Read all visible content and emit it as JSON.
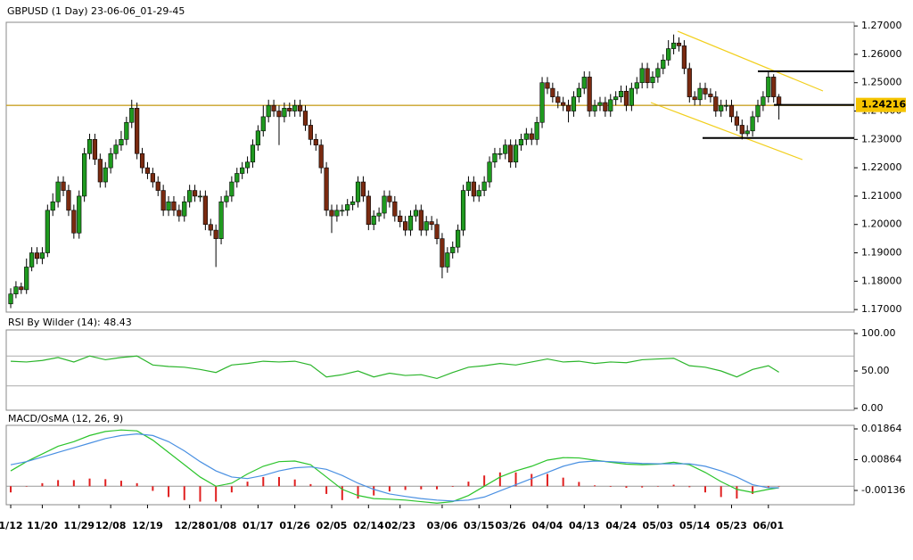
{
  "chart_data": [
    {
      "type": "candlestick",
      "title": "GBPUSD (1 Day) 23-06-06_01-29-45",
      "open": [
        1.172,
        1.1755,
        1.178,
        1.177,
        1.185,
        1.19,
        1.188,
        1.19,
        1.205,
        1.208,
        1.215,
        1.212,
        1.205,
        1.197,
        1.21,
        1.225,
        1.23,
        1.223,
        1.215,
        1.22,
        1.225,
        1.228,
        1.23,
        1.236,
        1.241,
        1.225,
        1.22,
        1.218,
        1.215,
        1.212,
        1.205,
        1.208,
        1.205,
        1.203,
        1.208,
        1.212,
        1.21,
        1.21,
        1.2,
        1.198,
        1.195,
        1.208,
        1.21,
        1.215,
        1.218,
        1.22,
        1.222,
        1.228,
        1.233,
        1.238,
        1.242,
        1.24,
        1.238,
        1.241,
        1.24,
        1.242,
        1.24,
        1.235,
        1.23,
        1.228,
        1.22,
        1.205,
        1.203,
        1.205,
        1.205,
        1.207,
        1.208,
        1.215,
        1.21,
        1.2,
        1.203,
        1.204,
        1.21,
        1.208,
        1.203,
        1.201,
        1.198,
        1.203,
        1.205,
        1.198,
        1.201,
        1.2,
        1.195,
        1.185,
        1.19,
        1.192,
        1.198,
        1.212,
        1.215,
        1.21,
        1.212,
        1.215,
        1.222,
        1.225,
        1.225,
        1.228,
        1.222,
        1.228,
        1.23,
        1.232,
        1.23,
        1.236,
        1.25,
        1.248,
        1.245,
        1.243,
        1.242,
        1.24,
        1.245,
        1.248,
        1.252,
        1.24,
        1.242,
        1.243,
        1.24,
        1.244,
        1.245,
        1.247,
        1.242,
        1.248,
        1.25,
        1.255,
        1.25,
        1.252,
        1.255,
        1.258,
        1.262,
        1.264,
        1.263,
        1.255,
        1.245,
        1.244,
        1.248,
        1.246,
        1.245,
        1.24,
        1.242,
        1.242,
        1.238,
        1.235,
        1.232,
        1.233,
        1.238,
        1.242,
        1.245,
        1.252,
        1.245
      ],
      "high": [
        1.1775,
        1.18,
        1.1795,
        1.188,
        1.192,
        1.192,
        1.192,
        1.207,
        1.211,
        1.217,
        1.217,
        1.214,
        1.207,
        1.212,
        1.227,
        1.232,
        1.232,
        1.225,
        1.222,
        1.227,
        1.23,
        1.233,
        1.238,
        1.244,
        1.243,
        1.227,
        1.222,
        1.22,
        1.217,
        1.214,
        1.21,
        1.21,
        1.207,
        1.21,
        1.214,
        1.214,
        1.212,
        1.212,
        1.202,
        1.2,
        1.21,
        1.212,
        1.217,
        1.22,
        1.222,
        1.224,
        1.23,
        1.235,
        1.242,
        1.244,
        1.244,
        1.242,
        1.243,
        1.243,
        1.244,
        1.244,
        1.242,
        1.237,
        1.232,
        1.23,
        1.222,
        1.207,
        1.207,
        1.207,
        1.209,
        1.21,
        1.217,
        1.217,
        1.212,
        1.205,
        1.206,
        1.212,
        1.212,
        1.21,
        1.205,
        1.203,
        1.205,
        1.207,
        1.207,
        1.203,
        1.203,
        1.202,
        1.197,
        1.192,
        1.194,
        1.2,
        1.214,
        1.217,
        1.217,
        1.214,
        1.217,
        1.224,
        1.227,
        1.227,
        1.23,
        1.23,
        1.23,
        1.232,
        1.234,
        1.234,
        1.238,
        1.252,
        1.252,
        1.25,
        1.247,
        1.245,
        1.244,
        1.247,
        1.25,
        1.254,
        1.254,
        1.244,
        1.245,
        1.245,
        1.246,
        1.247,
        1.249,
        1.249,
        1.25,
        1.252,
        1.257,
        1.257,
        1.254,
        1.257,
        1.26,
        1.265,
        1.267,
        1.266,
        1.265,
        1.257,
        1.247,
        1.25,
        1.25,
        1.248,
        1.247,
        1.244,
        1.244,
        1.244,
        1.24,
        1.237,
        1.235,
        1.24,
        1.244,
        1.247,
        1.254,
        1.253,
        1.246
      ],
      "low": [
        1.1705,
        1.174,
        1.1755,
        1.1755,
        1.1835,
        1.186,
        1.186,
        1.1885,
        1.203,
        1.206,
        1.21,
        1.203,
        1.195,
        1.195,
        1.208,
        1.223,
        1.221,
        1.213,
        1.213,
        1.218,
        1.223,
        1.226,
        1.228,
        1.234,
        1.223,
        1.218,
        1.216,
        1.213,
        1.21,
        1.203,
        1.203,
        1.203,
        1.201,
        1.201,
        1.206,
        1.208,
        1.208,
        1.198,
        1.196,
        1.185,
        1.193,
        1.206,
        1.208,
        1.213,
        1.216,
        1.218,
        1.22,
        1.226,
        1.231,
        1.236,
        1.238,
        1.228,
        1.236,
        1.238,
        1.238,
        1.238,
        1.233,
        1.228,
        1.226,
        1.218,
        1.203,
        1.197,
        1.201,
        1.203,
        1.203,
        1.205,
        1.206,
        1.208,
        1.198,
        1.198,
        1.201,
        1.202,
        1.206,
        1.201,
        1.199,
        1.196,
        1.196,
        1.201,
        1.196,
        1.196,
        1.198,
        1.193,
        1.181,
        1.183,
        1.188,
        1.19,
        1.196,
        1.21,
        1.208,
        1.208,
        1.21,
        1.213,
        1.22,
        1.223,
        1.223,
        1.22,
        1.22,
        1.226,
        1.228,
        1.228,
        1.228,
        1.234,
        1.246,
        1.243,
        1.241,
        1.24,
        1.236,
        1.238,
        1.243,
        1.246,
        1.238,
        1.238,
        1.24,
        1.238,
        1.238,
        1.242,
        1.243,
        1.24,
        1.24,
        1.246,
        1.248,
        1.248,
        1.248,
        1.25,
        1.253,
        1.256,
        1.26,
        1.261,
        1.253,
        1.243,
        1.242,
        1.242,
        1.244,
        1.243,
        1.238,
        1.238,
        1.24,
        1.236,
        1.233,
        1.23,
        1.231,
        1.231,
        1.236,
        1.24,
        1.243,
        1.243,
        1.237
      ],
      "close": [
        1.1755,
        1.178,
        1.177,
        1.185,
        1.19,
        1.188,
        1.19,
        1.205,
        1.208,
        1.215,
        1.212,
        1.205,
        1.197,
        1.21,
        1.225,
        1.23,
        1.223,
        1.215,
        1.22,
        1.225,
        1.228,
        1.23,
        1.236,
        1.241,
        1.225,
        1.22,
        1.218,
        1.215,
        1.212,
        1.205,
        1.208,
        1.205,
        1.203,
        1.208,
        1.212,
        1.21,
        1.21,
        1.2,
        1.198,
        1.195,
        1.208,
        1.21,
        1.215,
        1.218,
        1.22,
        1.222,
        1.228,
        1.233,
        1.238,
        1.242,
        1.24,
        1.238,
        1.241,
        1.24,
        1.242,
        1.24,
        1.235,
        1.23,
        1.228,
        1.22,
        1.205,
        1.203,
        1.205,
        1.205,
        1.207,
        1.208,
        1.215,
        1.21,
        1.2,
        1.203,
        1.204,
        1.21,
        1.208,
        1.203,
        1.201,
        1.198,
        1.203,
        1.205,
        1.198,
        1.201,
        1.2,
        1.195,
        1.185,
        1.19,
        1.192,
        1.198,
        1.212,
        1.215,
        1.21,
        1.212,
        1.215,
        1.222,
        1.225,
        1.225,
        1.228,
        1.222,
        1.228,
        1.23,
        1.232,
        1.23,
        1.236,
        1.25,
        1.248,
        1.245,
        1.243,
        1.242,
        1.24,
        1.245,
        1.248,
        1.252,
        1.24,
        1.242,
        1.243,
        1.24,
        1.244,
        1.245,
        1.247,
        1.242,
        1.248,
        1.25,
        1.255,
        1.25,
        1.252,
        1.255,
        1.258,
        1.262,
        1.264,
        1.263,
        1.255,
        1.245,
        1.244,
        1.248,
        1.246,
        1.245,
        1.24,
        1.242,
        1.242,
        1.238,
        1.235,
        1.232,
        1.233,
        1.238,
        1.242,
        1.245,
        1.252,
        1.245,
        1.2422
      ],
      "up_color": "#1f9a1f",
      "down_color": "#7a2a10",
      "xlim": [
        -0.85,
        160.3
      ],
      "xticks": [
        {
          "value": 0,
          "label": "1/12"
        },
        {
          "value": 6,
          "label": "11/20"
        },
        {
          "value": 13,
          "label": "11/29"
        },
        {
          "value": 19,
          "label": "12/08"
        },
        {
          "value": 26,
          "label": "12/19"
        },
        {
          "value": 34,
          "label": "12/28"
        },
        {
          "value": 40,
          "label": "01/08"
        },
        {
          "value": 47,
          "label": "01/17"
        },
        {
          "value": 54,
          "label": "01/26"
        },
        {
          "value": 61,
          "label": "02/05"
        },
        {
          "value": 68,
          "label": "02/14"
        },
        {
          "value": 74,
          "label": "02/23"
        },
        {
          "value": 82,
          "label": "03/06"
        },
        {
          "value": 89,
          "label": "03/15"
        },
        {
          "value": 95,
          "label": "03/26"
        },
        {
          "value": 102,
          "label": "04/04"
        },
        {
          "value": 109,
          "label": "04/13"
        },
        {
          "value": 116,
          "label": "04/24"
        },
        {
          "value": 123,
          "label": "05/03"
        },
        {
          "value": 130,
          "label": "05/14"
        },
        {
          "value": 137,
          "label": "05/23"
        },
        {
          "value": 144,
          "label": "06/01"
        }
      ],
      "ylim": [
        1.1691,
        1.2713
      ],
      "yticks": [
        {
          "value": 1.17,
          "label": "1.17000"
        },
        {
          "value": 1.18,
          "label": "1.18000"
        },
        {
          "value": 1.19,
          "label": "1.19000"
        },
        {
          "value": 1.2,
          "label": "1.20000"
        },
        {
          "value": 1.21,
          "label": "1.21000"
        },
        {
          "value": 1.22,
          "label": "1.22000"
        },
        {
          "value": 1.23,
          "label": "1.23000"
        },
        {
          "value": 1.24,
          "label": "1.24000"
        },
        {
          "value": 1.25,
          "label": "1.25000"
        },
        {
          "value": 1.26,
          "label": "1.26000"
        },
        {
          "value": 1.27,
          "label": "1.27000"
        }
      ],
      "level": 1.242,
      "level_color": "#c9a227",
      "hlines": [
        1.254,
        1.2305
      ],
      "current_price": 1.24216,
      "current_price_color": "#f5c400"
    },
    {
      "type": "line",
      "title": "RSI By Wilder (14): 48.43",
      "x": [
        0,
        3,
        6,
        9,
        12,
        15,
        18,
        21,
        24,
        27,
        30,
        33,
        36,
        39,
        42,
        45,
        48,
        51,
        54,
        57,
        60,
        63,
        66,
        69,
        72,
        75,
        78,
        81,
        84,
        87,
        90,
        93,
        96,
        99,
        102,
        105,
        108,
        111,
        114,
        117,
        120,
        123,
        126,
        129,
        132,
        135,
        138,
        141,
        144,
        146
      ],
      "values": [
        63,
        62,
        64,
        68,
        62,
        70,
        65,
        68,
        70,
        58,
        56,
        55,
        52,
        48,
        58,
        60,
        63,
        62,
        63,
        58,
        42,
        45,
        50,
        42,
        47,
        44,
        45,
        40,
        48,
        55,
        57,
        60,
        58,
        62,
        66,
        62,
        63,
        60,
        62,
        61,
        65,
        66,
        67,
        57,
        55,
        50,
        42,
        52,
        57,
        48.43
      ],
      "color": "#2bb52b",
      "ylim": [
        -2.4,
        104.8
      ],
      "yticks": [
        {
          "value": 0,
          "label": "0.00"
        },
        {
          "value": 50,
          "label": "50.00"
        },
        {
          "value": 100,
          "label": "100.00"
        }
      ],
      "levels": [
        70,
        30
      ]
    },
    {
      "type": "macd",
      "title": "MACD/OsMA (12, 26, 9)",
      "x": [
        0,
        3,
        6,
        9,
        12,
        15,
        18,
        21,
        24,
        27,
        30,
        33,
        36,
        39,
        42,
        45,
        48,
        51,
        54,
        57,
        60,
        63,
        66,
        69,
        72,
        75,
        78,
        81,
        84,
        87,
        90,
        93,
        96,
        99,
        102,
        105,
        108,
        111,
        114,
        117,
        120,
        123,
        126,
        129,
        132,
        135,
        138,
        141,
        144,
        146
      ],
      "series": [
        {
          "color": "#2bc42b",
          "values": [
            0.005,
            0.008,
            0.0105,
            0.013,
            0.0145,
            0.0165,
            0.0178,
            0.0183,
            0.018,
            0.015,
            0.011,
            0.007,
            0.003,
            0.0,
            0.001,
            0.004,
            0.0065,
            0.008,
            0.0082,
            0.007,
            0.003,
            -0.001,
            -0.003,
            -0.004,
            -0.0042,
            -0.0045,
            -0.005,
            -0.0055,
            -0.005,
            -0.003,
            0.0,
            0.003,
            0.005,
            0.0065,
            0.0085,
            0.0093,
            0.0092,
            0.0085,
            0.0078,
            0.0072,
            0.007,
            0.0072,
            0.0078,
            0.007,
            0.0045,
            0.0015,
            -0.001,
            -0.002,
            -0.001,
            -0.0005
          ]
        },
        {
          "color": "#4a90e2",
          "values": [
            0.007,
            0.008,
            0.0095,
            0.011,
            0.0125,
            0.014,
            0.0155,
            0.0165,
            0.017,
            0.0165,
            0.0145,
            0.0115,
            0.008,
            0.005,
            0.003,
            0.0025,
            0.0035,
            0.005,
            0.006,
            0.0063,
            0.0055,
            0.0035,
            0.001,
            -0.001,
            -0.0025,
            -0.0033,
            -0.004,
            -0.0045,
            -0.0048,
            -0.0045,
            -0.0035,
            -0.0015,
            0.0005,
            0.0025,
            0.0045,
            0.0065,
            0.0078,
            0.0082,
            0.008,
            0.0077,
            0.0074,
            0.0073,
            0.0073,
            0.0073,
            0.0065,
            0.005,
            0.003,
            0.0005,
            -0.0005,
            -0.0005
          ]
        }
      ],
      "histogram": {
        "color": "#e02020",
        "values": [
          -0.002,
          0.0,
          0.001,
          0.002,
          0.002,
          0.0025,
          0.0023,
          0.0018,
          0.001,
          -0.0015,
          -0.0035,
          -0.0045,
          -0.005,
          -0.005,
          -0.002,
          0.0015,
          0.003,
          0.003,
          0.0022,
          0.0007,
          -0.0025,
          -0.0045,
          -0.004,
          -0.003,
          -0.0017,
          -0.0012,
          -0.001,
          -0.001,
          -0.0002,
          0.0015,
          0.0035,
          0.0045,
          0.0045,
          0.004,
          0.004,
          0.0028,
          0.0014,
          0.0003,
          -0.0002,
          -0.0005,
          -0.0004,
          -0.0001,
          0.0005,
          -0.0003,
          -0.002,
          -0.0035,
          -0.004,
          -0.0025,
          -0.0005,
          0.0
        ]
      },
      "ylim": [
        -0.006,
        0.0198
      ],
      "yticks": [
        -0.00136,
        0.00864,
        0.01864
      ],
      "levels": [
        0
      ]
    }
  ]
}
